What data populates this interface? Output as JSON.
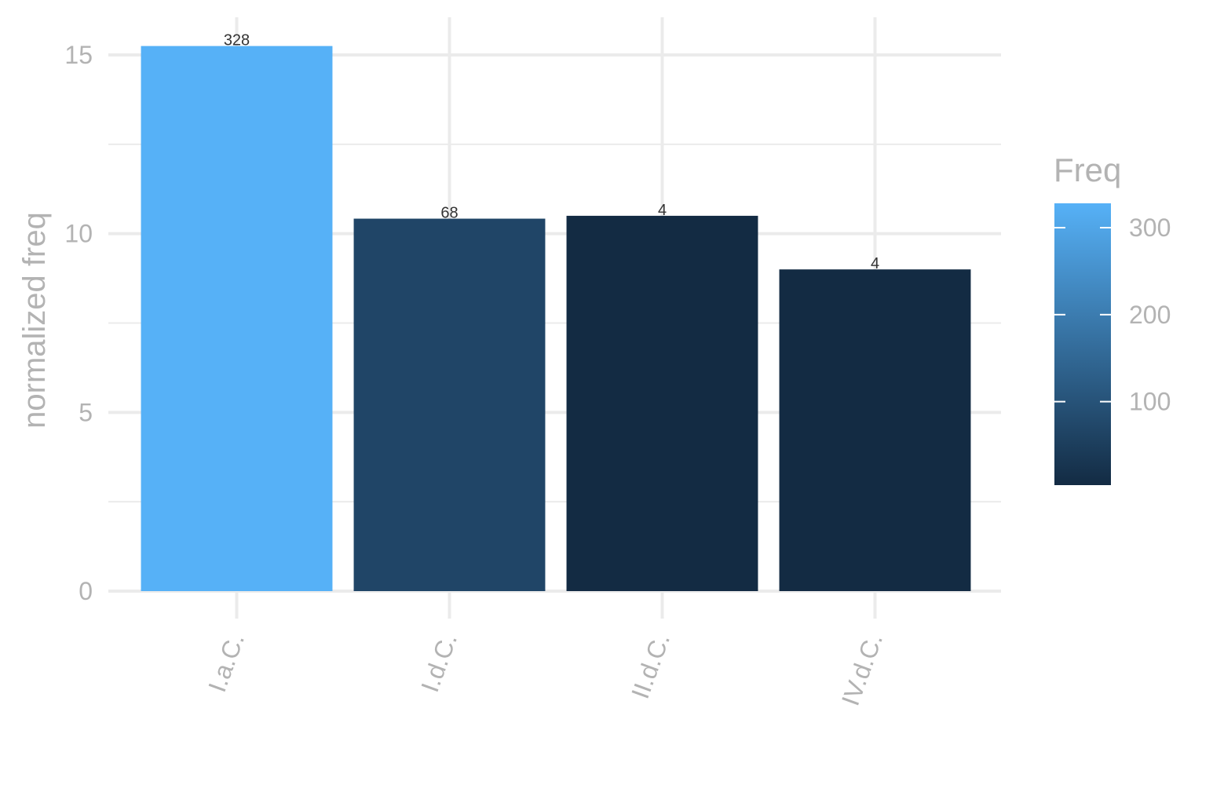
{
  "chart_data": {
    "type": "bar",
    "categories": [
      "I.a.C.",
      "I.d.C.",
      "II.d.C.",
      "IV.d.C."
    ],
    "values": [
      15.25,
      10.42,
      10.5,
      9.0
    ],
    "fill_values": [
      328,
      68,
      4,
      4
    ],
    "data_labels": [
      "328",
      "68",
      "4",
      "4"
    ],
    "ylabel": "normalized freq",
    "ylim": [
      0,
      15.5
    ],
    "y_ticks": [
      0,
      5,
      10,
      15
    ],
    "y_tick_labels": [
      "0",
      "5",
      "10",
      "15"
    ],
    "grid": true,
    "legend": {
      "title": "Freq",
      "type": "colorbar",
      "placement": "right",
      "range": [
        4,
        328
      ],
      "breaks": [
        100,
        200,
        300
      ],
      "break_labels": [
        "100",
        "200",
        "300"
      ],
      "color_low": "#132b43",
      "color_high": "#56b1f7"
    }
  }
}
